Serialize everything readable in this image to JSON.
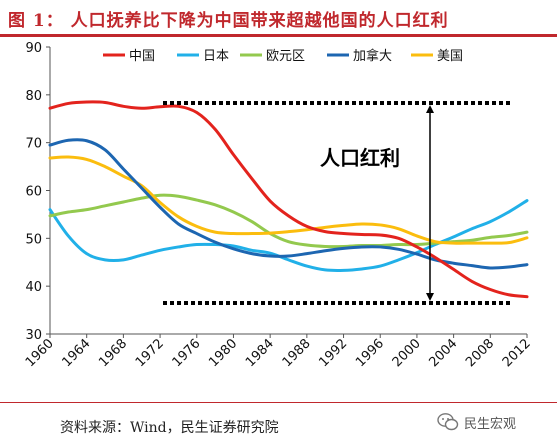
{
  "figure": {
    "title": "图 1：  人口抚养比下降为中国带来超越他国的人口红利",
    "source": "资料来源：Wind，民生证券研究院",
    "watermark": "民生宏观"
  },
  "colors": {
    "title": "#c0282d",
    "中国": "#e3231d",
    "日本": "#21b0e8",
    "欧元区": "#93c94e",
    "加拿大": "#1d66b1",
    "美国": "#fbbd0e"
  },
  "chart_data": {
    "type": "line",
    "title": "",
    "xlabel": "",
    "ylabel": "",
    "xlim": [
      1960,
      2012
    ],
    "ylim": [
      30,
      90
    ],
    "y_ticks": [
      30,
      40,
      50,
      60,
      70,
      80,
      90
    ],
    "x_ticks": [
      1960,
      1964,
      1968,
      1972,
      1976,
      1980,
      1984,
      1988,
      1992,
      1996,
      2000,
      2004,
      2008,
      2012
    ],
    "grid": false,
    "legend_position": "top",
    "x": [
      1960,
      1962,
      1964,
      1966,
      1968,
      1970,
      1972,
      1974,
      1976,
      1978,
      1980,
      1982,
      1984,
      1986,
      1988,
      1990,
      1992,
      1994,
      1996,
      1998,
      2000,
      2002,
      2004,
      2006,
      2008,
      2010,
      2012
    ],
    "series": [
      {
        "name": "中国",
        "values": [
          77.2,
          78.2,
          78.5,
          78.4,
          77.6,
          77.2,
          77.5,
          77.6,
          76.3,
          72.8,
          67.5,
          62.5,
          57.8,
          54.7,
          52.5,
          51.4,
          51.0,
          50.8,
          50.7,
          50.0,
          48.2,
          46.0,
          43.5,
          41.0,
          39.3,
          38.2,
          37.8
        ]
      },
      {
        "name": "日本",
        "values": [
          56.0,
          50.5,
          46.8,
          45.5,
          45.5,
          46.5,
          47.5,
          48.2,
          48.7,
          48.7,
          48.4,
          47.5,
          46.9,
          45.5,
          44.2,
          43.4,
          43.3,
          43.6,
          44.2,
          45.5,
          47.0,
          48.7,
          50.3,
          52.0,
          53.5,
          55.5,
          57.9
        ]
      },
      {
        "name": "欧元区",
        "values": [
          54.7,
          55.5,
          56.0,
          56.8,
          57.6,
          58.4,
          59.0,
          58.8,
          58.0,
          57.0,
          55.5,
          53.5,
          51.0,
          49.3,
          48.6,
          48.3,
          48.3,
          48.5,
          48.5,
          48.7,
          48.7,
          49.0,
          49.3,
          49.6,
          50.2,
          50.6,
          51.3
        ]
      },
      {
        "name": "加拿大",
        "values": [
          69.5,
          70.5,
          70.4,
          68.5,
          64.5,
          60.5,
          56.5,
          53.0,
          51.0,
          49.2,
          47.8,
          46.8,
          46.3,
          46.3,
          46.8,
          47.4,
          47.9,
          48.2,
          48.2,
          47.7,
          46.7,
          45.5,
          44.8,
          44.3,
          43.8,
          44.0,
          44.5
        ]
      },
      {
        "name": "美国",
        "values": [
          66.8,
          67.0,
          66.5,
          65.0,
          63.0,
          61.0,
          57.5,
          54.5,
          52.5,
          51.3,
          51.0,
          51.0,
          51.1,
          51.4,
          51.8,
          52.3,
          52.7,
          53.0,
          52.8,
          52.0,
          50.5,
          49.3,
          49.0,
          49.0,
          49.0,
          49.1,
          50.1
        ]
      }
    ],
    "annotations": [
      {
        "text": "人口红利"
      }
    ]
  }
}
